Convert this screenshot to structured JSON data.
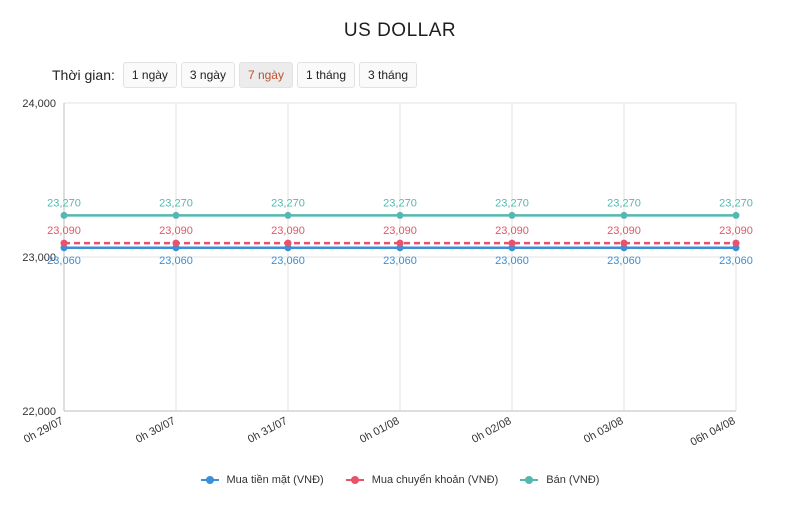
{
  "chart_data": {
    "type": "line",
    "title": "US DOLLAR",
    "x": [
      "0h 29/07",
      "0h 30/07",
      "0h 31/07",
      "0h 01/08",
      "0h 02/08",
      "0h 03/08",
      "06h 04/08"
    ],
    "ylim": [
      22000,
      24000
    ],
    "yticks": [
      "22,000",
      "23,000",
      "24,000"
    ],
    "grid": true,
    "legend_position": "bottom",
    "series": [
      {
        "name": "Mua tiền mặt (VNĐ)",
        "values": [
          23060,
          23060,
          23060,
          23060,
          23060,
          23060,
          23060
        ],
        "labels": [
          "23,060",
          "23,060",
          "23,060",
          "23,060",
          "23,060",
          "23,060",
          "23,060"
        ],
        "color": "#3a8fd6",
        "dashed": false
      },
      {
        "name": "Mua chuyển khoản (VNĐ)",
        "values": [
          23090,
          23090,
          23090,
          23090,
          23090,
          23090,
          23090
        ],
        "labels": [
          "23,090",
          "23,090",
          "23,090",
          "23,090",
          "23,090",
          "23,090",
          "23,090"
        ],
        "color": "#e8536b",
        "dashed": true
      },
      {
        "name": "Bán (VNĐ)",
        "values": [
          23270,
          23270,
          23270,
          23270,
          23270,
          23270,
          23270
        ],
        "labels": [
          "23,270",
          "23,270",
          "23,270",
          "23,270",
          "23,270",
          "23,270",
          "23,270"
        ],
        "color": "#52b8b1",
        "dashed": false
      }
    ]
  },
  "time_filter": {
    "label": "Thời gian:",
    "options": [
      "1 ngày",
      "3 ngày",
      "7 ngày",
      "1 tháng",
      "3 tháng"
    ],
    "selected": "7 ngày"
  }
}
